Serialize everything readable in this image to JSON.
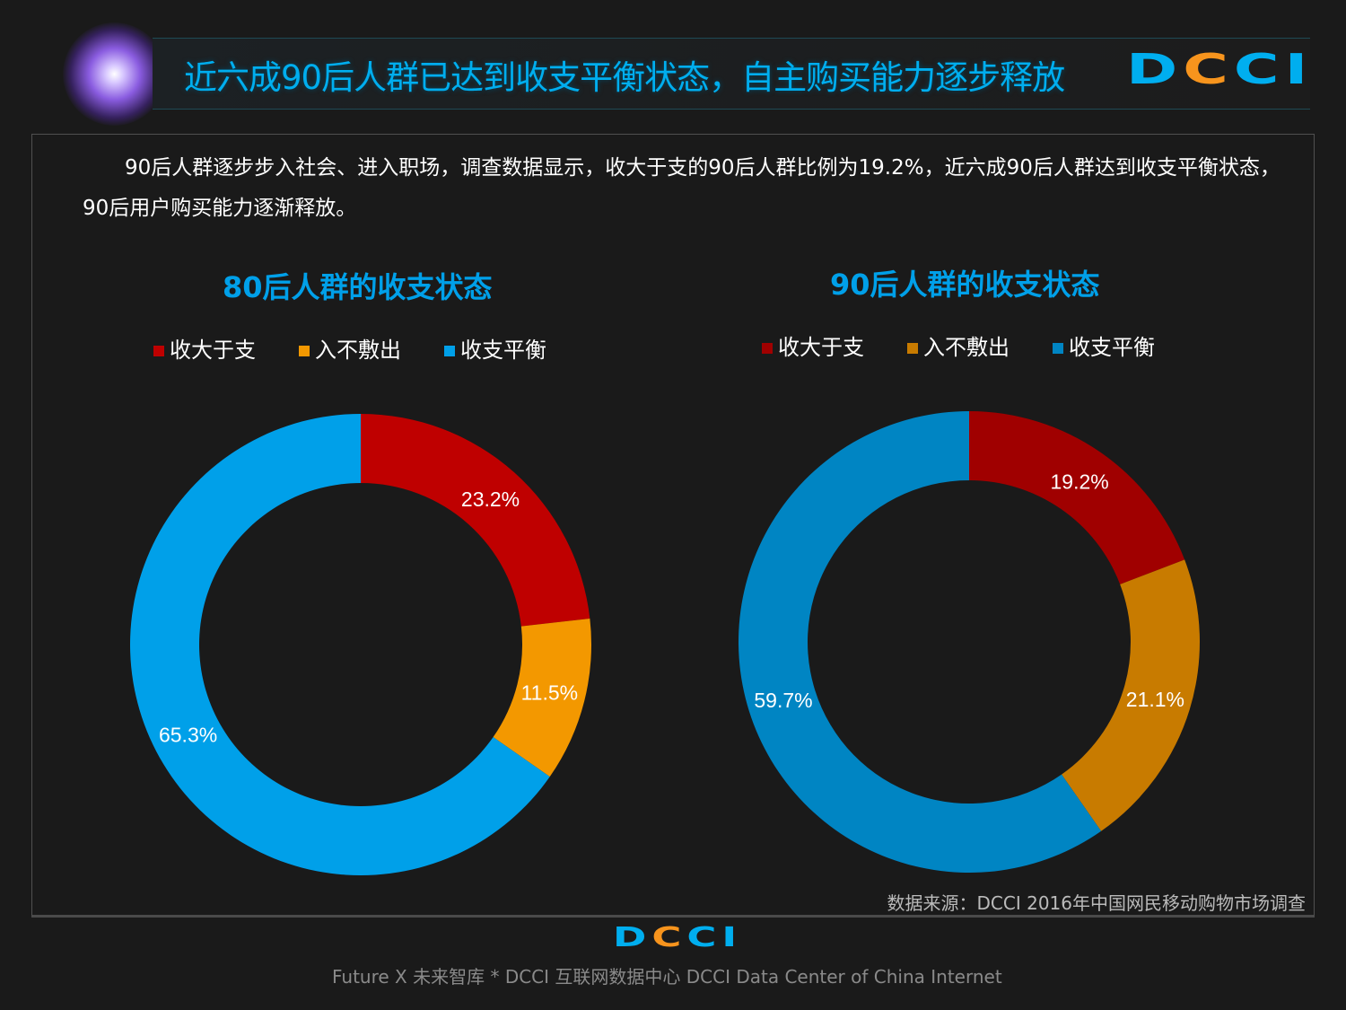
{
  "header": {
    "title": "近六成90后人群已达到收支平衡状态，自主购买能力逐步释放",
    "logo": "DCCI"
  },
  "intro": "90后人群逐步步入社会、进入职场，调查数据显示，收大于支的90后人群比例为19.2%，近六成90后人群达到收支平衡状态， 90后用户购买能力逐渐释放。",
  "chart_data": [
    {
      "type": "pie",
      "title": "80后人群的收支状态",
      "categories": [
        "收大于支",
        "入不敷出",
        "收支平衡"
      ],
      "values": [
        23.2,
        11.5,
        65.3
      ],
      "labels": [
        "23.2%",
        "11.5%",
        "65.3%"
      ],
      "colors": [
        "#bf0000",
        "#f39800",
        "#00a0e9"
      ],
      "legend": "top"
    },
    {
      "type": "pie",
      "title": "90后人群的收支状态",
      "categories": [
        "收大于支",
        "入不敷出",
        "收支平衡"
      ],
      "values": [
        19.2,
        21.1,
        59.7
      ],
      "labels": [
        "19.2%",
        "21.1%",
        "59.7%"
      ],
      "colors": [
        "#a00000",
        "#c87b00",
        "#0085c3"
      ],
      "legend": "top"
    }
  ],
  "source": "数据来源：DCCI 2016年中国网民移动购物市场调查",
  "footer": {
    "logo": "DCCI",
    "text": "Future X 未来智库 * DCCI 互联网数据中心 DCCI Data Center of China Internet"
  }
}
